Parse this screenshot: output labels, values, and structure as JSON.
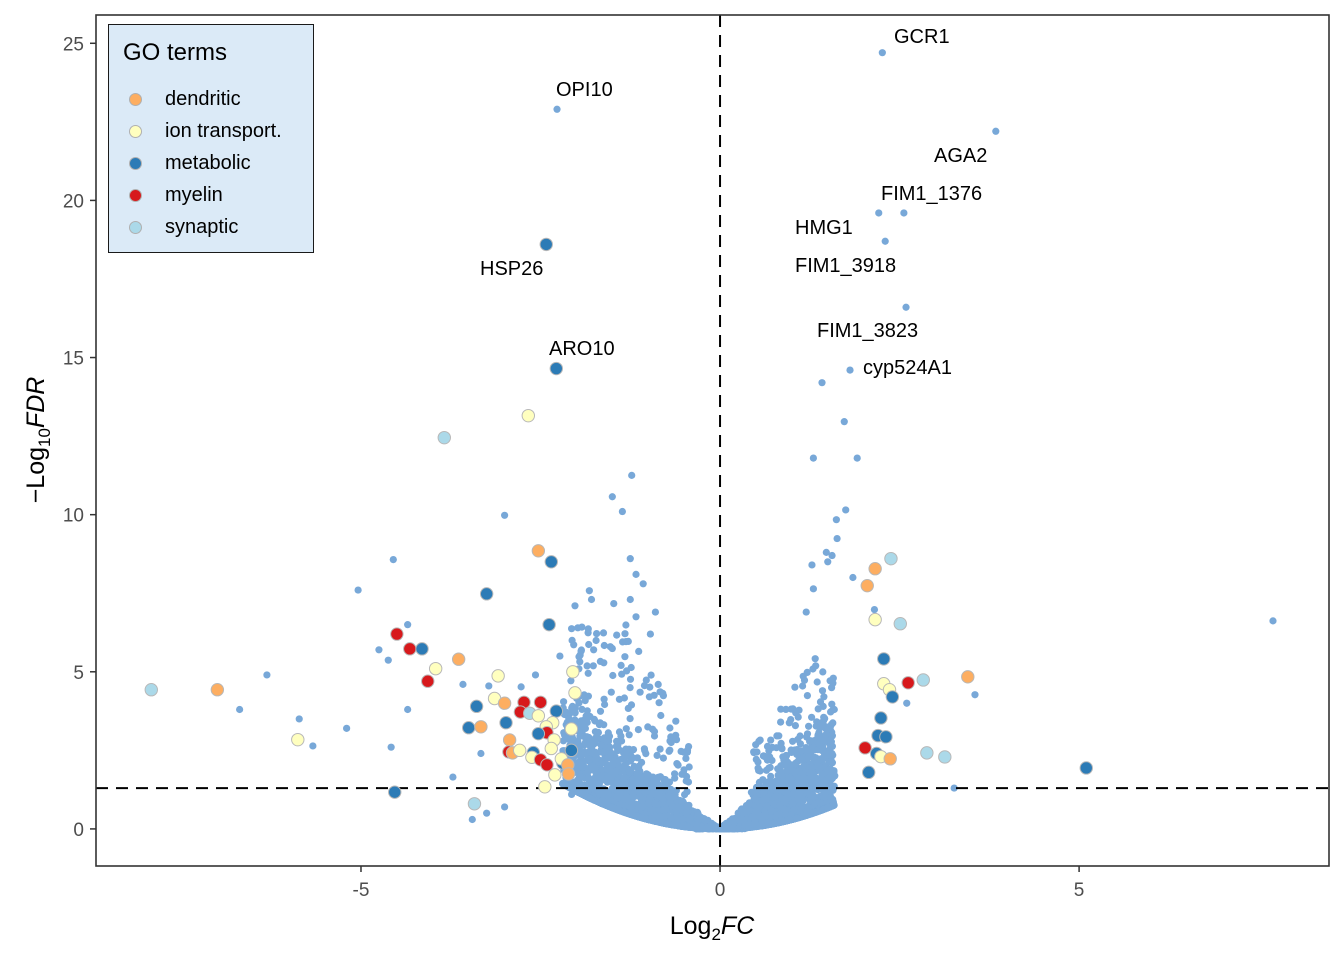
{
  "chart_data": {
    "type": "scatter",
    "subtype": "volcano",
    "title": "",
    "xlabel": {
      "prefix": "Log",
      "sub": "2",
      "italic": "FC"
    },
    "ylabel": {
      "prefix": "−Log",
      "sub": "10",
      "italic": "FDR"
    },
    "xlim": [
      -8.69,
      8.48
    ],
    "ylim": [
      -1.18,
      25.9
    ],
    "xticks": [
      -5,
      0,
      5
    ],
    "xtick_labels": [
      "-5",
      "0",
      "5"
    ],
    "yticks": [
      0,
      5,
      10,
      15,
      20,
      25
    ],
    "ytick_labels": [
      "0",
      "5",
      "10",
      "15",
      "20",
      "25"
    ],
    "grid": false,
    "reference_lines": {
      "vertical_x": 0,
      "horizontal_y": 1.3,
      "style": "dashed"
    },
    "legend": {
      "title": "GO terms",
      "placement": "top-left",
      "entries": [
        {
          "key": "dendritic",
          "label": "dendritic",
          "color": "#fdae61"
        },
        {
          "key": "ion",
          "label": "ion transport.",
          "color": "#ffffbf"
        },
        {
          "key": "metabolic",
          "label": "metabolic",
          "color": "#2c7bb6"
        },
        {
          "key": "myelin",
          "label": "myelin",
          "color": "#d7191c"
        },
        {
          "key": "synaptic",
          "label": "synaptic",
          "color": "#abd9e9"
        }
      ]
    },
    "background_color": "#78a8d8",
    "labeled_genes": [
      {
        "label": "GCR1",
        "x": 2.26,
        "y": 24.7,
        "dx": 1.8,
        "dy": 0.0
      },
      {
        "label": "OPI10",
        "x": -2.27,
        "y": 22.9,
        "dx": -0.05,
        "dy": 0.0
      },
      {
        "label": "AGA2",
        "x": 3.84,
        "y": 22.2,
        "dx": -0.7,
        "dy": -1.8
      },
      {
        "label": "FIM1_1376",
        "x": 2.56,
        "y": 19.6,
        "dx": -0.5,
        "dy": 0.0
      },
      {
        "label": "HMG1",
        "x": 2.21,
        "y": 19.6,
        "dx": -1.05,
        "dy": -1.1
      },
      {
        "label": "FIM1_3918",
        "x": 2.3,
        "y": 18.7,
        "dx": -1.25,
        "dy": -1.4
      },
      {
        "label": "HSP26",
        "x": -2.42,
        "y": 18.6,
        "dx": -1.12,
        "dy": -1.6
      },
      {
        "label": "FIM1_3823",
        "x": 2.59,
        "y": 16.6,
        "dx": -1.55,
        "dy": -1.4
      },
      {
        "label": "ARO10",
        "x": -2.28,
        "y": 14.65,
        "dx": -0.1,
        "dy": 0.0
      },
      {
        "label": "cyp524A1",
        "x": 1.81,
        "y": 14.6,
        "dx": 0.2,
        "dy": -0.5
      }
    ],
    "go_points": [
      {
        "x": -2.42,
        "y": 18.6,
        "g": "metabolic"
      },
      {
        "x": -2.28,
        "y": 14.65,
        "g": "metabolic"
      },
      {
        "x": -2.67,
        "y": 13.15,
        "g": "ion"
      },
      {
        "x": -3.84,
        "y": 12.45,
        "g": "synaptic"
      },
      {
        "x": -2.53,
        "y": 8.85,
        "g": "dendritic"
      },
      {
        "x": -2.35,
        "y": 8.5,
        "g": "metabolic"
      },
      {
        "x": -3.25,
        "y": 7.48,
        "g": "metabolic"
      },
      {
        "x": -2.38,
        "y": 6.5,
        "g": "metabolic"
      },
      {
        "x": -4.5,
        "y": 6.2,
        "g": "myelin"
      },
      {
        "x": -4.32,
        "y": 5.73,
        "g": "myelin"
      },
      {
        "x": -4.15,
        "y": 5.73,
        "g": "metabolic"
      },
      {
        "x": -3.64,
        "y": 5.4,
        "g": "dendritic"
      },
      {
        "x": -3.96,
        "y": 5.1,
        "g": "ion"
      },
      {
        "x": -4.07,
        "y": 4.7,
        "g": "myelin"
      },
      {
        "x": -3.09,
        "y": 4.87,
        "g": "ion"
      },
      {
        "x": -2.05,
        "y": 5.0,
        "g": "ion"
      },
      {
        "x": -2.02,
        "y": 4.33,
        "g": "ion"
      },
      {
        "x": -7.92,
        "y": 4.43,
        "g": "synaptic"
      },
      {
        "x": -7.0,
        "y": 4.43,
        "g": "dendritic"
      },
      {
        "x": -5.88,
        "y": 2.84,
        "g": "ion"
      },
      {
        "x": -4.53,
        "y": 1.17,
        "g": "metabolic"
      },
      {
        "x": -3.42,
        "y": 0.8,
        "g": "synaptic"
      },
      {
        "x": -3.14,
        "y": 4.15,
        "g": "ion"
      },
      {
        "x": -3.0,
        "y": 4.0,
        "g": "dendritic"
      },
      {
        "x": -2.73,
        "y": 4.03,
        "g": "myelin"
      },
      {
        "x": -2.5,
        "y": 4.03,
        "g": "myelin"
      },
      {
        "x": -3.39,
        "y": 3.9,
        "g": "metabolic"
      },
      {
        "x": -2.28,
        "y": 3.75,
        "g": "metabolic"
      },
      {
        "x": -2.78,
        "y": 3.72,
        "g": "myelin"
      },
      {
        "x": -2.65,
        "y": 3.68,
        "g": "synaptic"
      },
      {
        "x": -2.53,
        "y": 3.6,
        "g": "ion"
      },
      {
        "x": -2.98,
        "y": 3.38,
        "g": "metabolic"
      },
      {
        "x": -2.33,
        "y": 3.38,
        "g": "ion"
      },
      {
        "x": -2.42,
        "y": 3.25,
        "g": "ion"
      },
      {
        "x": -3.5,
        "y": 3.22,
        "g": "metabolic"
      },
      {
        "x": -3.33,
        "y": 3.25,
        "g": "dendritic"
      },
      {
        "x": -2.41,
        "y": 3.06,
        "g": "myelin"
      },
      {
        "x": -2.53,
        "y": 3.03,
        "g": "metabolic"
      },
      {
        "x": -2.07,
        "y": 3.18,
        "g": "ion"
      },
      {
        "x": -2.93,
        "y": 2.83,
        "g": "dendritic"
      },
      {
        "x": -2.31,
        "y": 2.83,
        "g": "ion"
      },
      {
        "x": -2.94,
        "y": 2.45,
        "g": "myelin"
      },
      {
        "x": -2.89,
        "y": 2.42,
        "g": "dendritic"
      },
      {
        "x": -2.79,
        "y": 2.5,
        "g": "ion"
      },
      {
        "x": -2.6,
        "y": 2.43,
        "g": "metabolic"
      },
      {
        "x": -2.62,
        "y": 2.28,
        "g": "ion"
      },
      {
        "x": -2.35,
        "y": 2.56,
        "g": "ion"
      },
      {
        "x": -2.5,
        "y": 2.2,
        "g": "myelin"
      },
      {
        "x": -2.41,
        "y": 2.04,
        "g": "myelin"
      },
      {
        "x": -2.19,
        "y": 2.1,
        "g": "metabolic"
      },
      {
        "x": -2.21,
        "y": 2.23,
        "g": "ion"
      },
      {
        "x": -2.07,
        "y": 2.5,
        "g": "metabolic"
      },
      {
        "x": -2.12,
        "y": 2.04,
        "g": "dendritic"
      },
      {
        "x": -2.11,
        "y": 1.75,
        "g": "dendritic"
      },
      {
        "x": -2.44,
        "y": 1.34,
        "g": "ion"
      },
      {
        "x": -2.3,
        "y": 1.72,
        "g": "ion"
      },
      {
        "x": 2.38,
        "y": 8.6,
        "g": "synaptic"
      },
      {
        "x": 2.16,
        "y": 8.28,
        "g": "dendritic"
      },
      {
        "x": 2.05,
        "y": 7.74,
        "g": "dendritic"
      },
      {
        "x": 2.16,
        "y": 6.66,
        "g": "ion"
      },
      {
        "x": 2.51,
        "y": 6.53,
        "g": "synaptic"
      },
      {
        "x": 2.28,
        "y": 5.41,
        "g": "metabolic"
      },
      {
        "x": 2.28,
        "y": 4.62,
        "g": "ion"
      },
      {
        "x": 2.36,
        "y": 4.43,
        "g": "ion"
      },
      {
        "x": 2.62,
        "y": 4.65,
        "g": "myelin"
      },
      {
        "x": 2.83,
        "y": 4.74,
        "g": "synaptic"
      },
      {
        "x": 2.4,
        "y": 4.2,
        "g": "metabolic"
      },
      {
        "x": 3.45,
        "y": 4.84,
        "g": "dendritic"
      },
      {
        "x": 2.24,
        "y": 3.53,
        "g": "metabolic"
      },
      {
        "x": 2.2,
        "y": 2.97,
        "g": "metabolic"
      },
      {
        "x": 2.31,
        "y": 2.93,
        "g": "metabolic"
      },
      {
        "x": 2.02,
        "y": 2.58,
        "g": "myelin"
      },
      {
        "x": 2.18,
        "y": 2.4,
        "g": "metabolic"
      },
      {
        "x": 2.24,
        "y": 2.3,
        "g": "ion"
      },
      {
        "x": 2.37,
        "y": 2.23,
        "g": "dendritic"
      },
      {
        "x": 2.88,
        "y": 2.42,
        "g": "synaptic"
      },
      {
        "x": 3.13,
        "y": 2.29,
        "g": "synaptic"
      },
      {
        "x": 2.07,
        "y": 1.8,
        "g": "metabolic"
      },
      {
        "x": 5.1,
        "y": 1.94,
        "g": "metabolic"
      }
    ],
    "other_points": [
      {
        "x": -2.27,
        "y": 22.9
      },
      {
        "x": 2.26,
        "y": 24.7
      },
      {
        "x": 3.84,
        "y": 22.2
      },
      {
        "x": 2.56,
        "y": 19.6
      },
      {
        "x": 2.21,
        "y": 19.6
      },
      {
        "x": 2.3,
        "y": 18.7
      },
      {
        "x": 2.59,
        "y": 16.6
      },
      {
        "x": 1.81,
        "y": 14.6
      },
      {
        "x": 1.42,
        "y": 14.2
      },
      {
        "x": 1.73,
        "y": 12.96
      },
      {
        "x": 1.3,
        "y": 11.8
      },
      {
        "x": 1.91,
        "y": 11.8
      },
      {
        "x": 1.75,
        "y": 10.15
      },
      {
        "x": 1.62,
        "y": 9.84
      },
      {
        "x": 1.63,
        "y": 9.24
      },
      {
        "x": 1.48,
        "y": 8.8
      },
      {
        "x": 1.56,
        "y": 8.7
      },
      {
        "x": 1.5,
        "y": 8.5
      },
      {
        "x": 1.28,
        "y": 8.4
      },
      {
        "x": 1.85,
        "y": 8.0
      },
      {
        "x": 1.3,
        "y": 7.64
      },
      {
        "x": 1.2,
        "y": 6.9
      },
      {
        "x": 2.15,
        "y": 6.98
      },
      {
        "x": 7.7,
        "y": 6.62
      },
      {
        "x": 3.55,
        "y": 4.27
      },
      {
        "x": 3.26,
        "y": 1.3
      },
      {
        "x": 2.6,
        "y": 4.0
      },
      {
        "x": -1.23,
        "y": 11.25
      },
      {
        "x": -1.5,
        "y": 10.57
      },
      {
        "x": -1.36,
        "y": 10.1
      },
      {
        "x": -1.25,
        "y": 8.6
      },
      {
        "x": -1.17,
        "y": 8.1
      },
      {
        "x": -1.82,
        "y": 7.58
      },
      {
        "x": -1.79,
        "y": 7.3
      },
      {
        "x": -1.48,
        "y": 7.17
      },
      {
        "x": -2.02,
        "y": 7.1
      },
      {
        "x": -1.25,
        "y": 7.3
      },
      {
        "x": -1.07,
        "y": 7.8
      },
      {
        "x": -1.17,
        "y": 6.75
      },
      {
        "x": -1.98,
        "y": 6.4
      },
      {
        "x": -0.9,
        "y": 6.9
      },
      {
        "x": -0.97,
        "y": 6.2
      },
      {
        "x": -1.76,
        "y": 5.7
      },
      {
        "x": -1.5,
        "y": 5.74
      },
      {
        "x": -3.0,
        "y": 9.98
      },
      {
        "x": -4.55,
        "y": 8.57
      },
      {
        "x": -5.04,
        "y": 7.6
      },
      {
        "x": -4.35,
        "y": 6.5
      },
      {
        "x": -4.75,
        "y": 5.7
      },
      {
        "x": -4.62,
        "y": 5.37
      },
      {
        "x": -6.31,
        "y": 4.9
      },
      {
        "x": -6.69,
        "y": 3.8
      },
      {
        "x": -5.86,
        "y": 3.5
      },
      {
        "x": -5.67,
        "y": 2.64
      },
      {
        "x": -5.2,
        "y": 3.2
      },
      {
        "x": -4.58,
        "y": 2.6
      },
      {
        "x": -4.35,
        "y": 3.8
      },
      {
        "x": -3.72,
        "y": 1.65
      },
      {
        "x": -3.25,
        "y": 0.5
      },
      {
        "x": -3.0,
        "y": 0.7
      },
      {
        "x": -3.45,
        "y": 0.3
      },
      {
        "x": -3.58,
        "y": 4.6
      },
      {
        "x": -3.22,
        "y": 4.55
      },
      {
        "x": -2.57,
        "y": 4.9
      },
      {
        "x": -2.77,
        "y": 4.52
      },
      {
        "x": -3.33,
        "y": 2.4
      },
      {
        "x": -2.06,
        "y": 6.0
      },
      {
        "x": -2.23,
        "y": 5.5
      }
    ],
    "dense_cloud": {
      "description": "non-significant genes forming V-shaped volcano",
      "count": 3200,
      "seed": 7,
      "neg_x_max": 2.2,
      "pos_x_max": 1.6,
      "y_max_neg": 4.5,
      "y_max_pos": 4.2
    }
  }
}
